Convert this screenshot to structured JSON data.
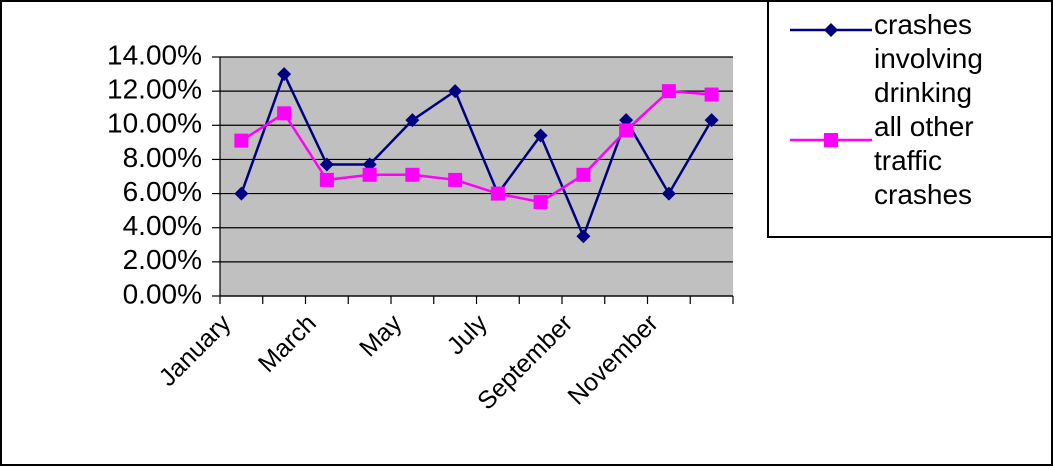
{
  "chart_data": {
    "type": "line",
    "categories": [
      "January",
      null,
      "March",
      null,
      "May",
      null,
      "July",
      null,
      "September",
      null,
      "November",
      null
    ],
    "series": [
      {
        "name": "crashes involving drinking",
        "color": "#000080",
        "marker": "diamond",
        "values": [
          6.0,
          13.0,
          7.7,
          7.7,
          10.3,
          12.0,
          6.0,
          9.4,
          3.5,
          10.3,
          6.0,
          10.3
        ]
      },
      {
        "name": "all other traffic crashes",
        "color": "#ff00ff",
        "marker": "square",
        "values": [
          9.1,
          10.7,
          6.8,
          7.1,
          7.1,
          6.8,
          6.0,
          5.5,
          7.1,
          9.7,
          12.0,
          11.8
        ]
      }
    ],
    "ylim": [
      0,
      14
    ],
    "yticks": [
      {
        "value": 0,
        "label": "0.00%"
      },
      {
        "value": 2,
        "label": "2.00%"
      },
      {
        "value": 4,
        "label": "4.00%"
      },
      {
        "value": 6,
        "label": "6.00%"
      },
      {
        "value": 8,
        "label": "8.00%"
      },
      {
        "value": 10,
        "label": "10.00%"
      },
      {
        "value": 12,
        "label": "12.00%"
      },
      {
        "value": 14,
        "label": "14.00%"
      }
    ],
    "grid": true,
    "plot_background": "#c0c0c0",
    "legend": "right"
  }
}
